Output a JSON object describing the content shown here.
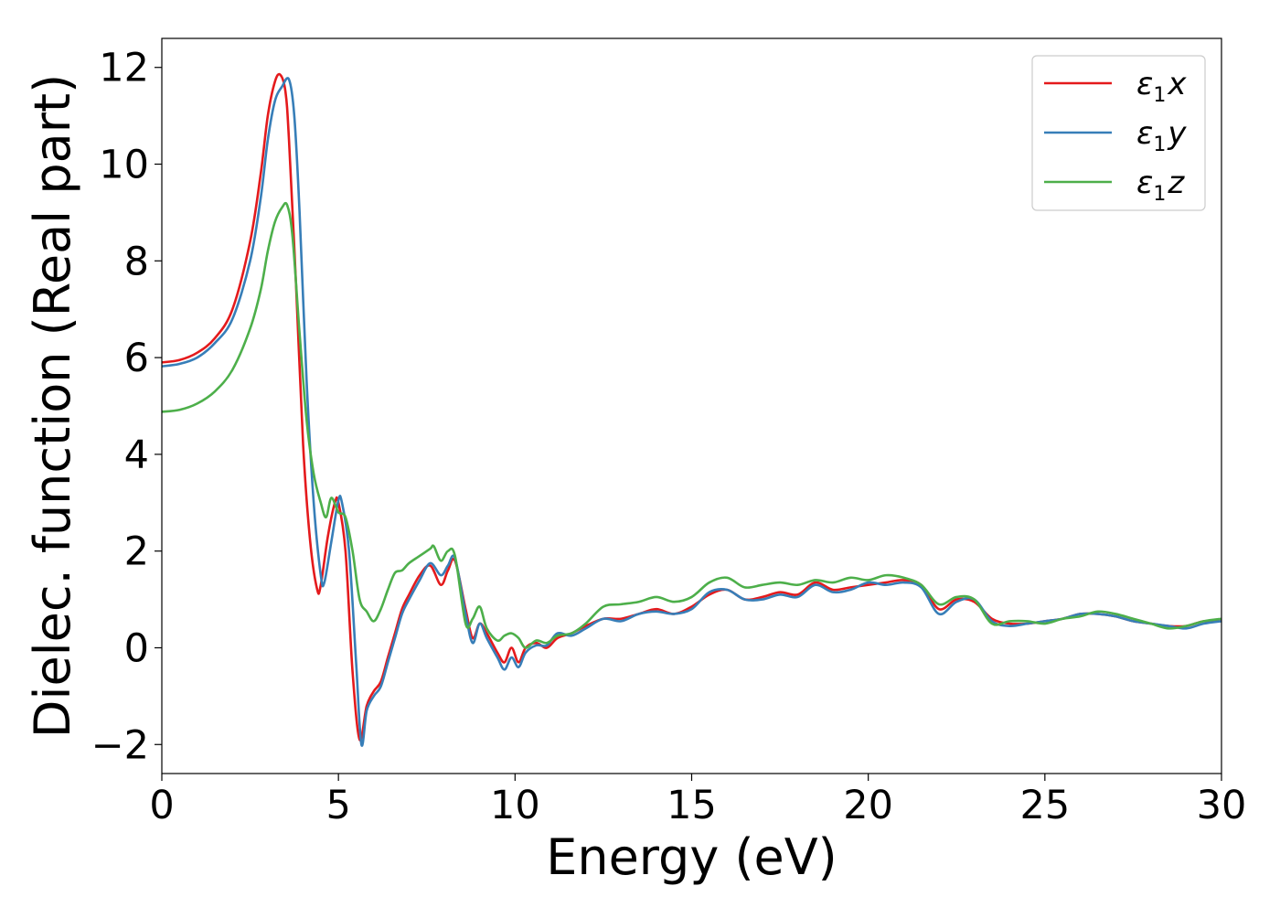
{
  "chart_data": {
    "type": "line",
    "title": "",
    "xlabel": "Energy (eV)",
    "ylabel": "Dielec. function (Real part)",
    "xlim": [
      0,
      30
    ],
    "ylim": [
      -2.6,
      12.6
    ],
    "xticks": [
      0,
      5,
      10,
      15,
      20,
      25,
      30
    ],
    "yticks": [
      -2,
      0,
      2,
      4,
      6,
      8,
      10,
      12
    ],
    "xtick_labels": [
      "0",
      "5",
      "10",
      "15",
      "20",
      "25",
      "30"
    ],
    "ytick_labels": [
      "−2",
      "0",
      "2",
      "4",
      "6",
      "8",
      "10",
      "12"
    ],
    "grid": false,
    "legend_position": "top-right",
    "series": [
      {
        "name": "ε₁x",
        "legend_main": "ε",
        "legend_sub": "1",
        "legend_var": "x",
        "color": "#e41a1c",
        "x": [
          0,
          0.5,
          1,
          1.5,
          2,
          2.5,
          2.8,
          3.0,
          3.2,
          3.35,
          3.5,
          3.6,
          3.8,
          4.0,
          4.2,
          4.4,
          4.5,
          4.7,
          4.9,
          5.0,
          5.2,
          5.4,
          5.6,
          5.8,
          6.0,
          6.2,
          6.4,
          6.6,
          6.8,
          7.0,
          7.3,
          7.6,
          7.9,
          8.1,
          8.3,
          8.6,
          8.8,
          9.0,
          9.2,
          9.5,
          9.7,
          9.9,
          10.1,
          10.3,
          10.6,
          10.9,
          11.2,
          11.6,
          12.0,
          12.5,
          13.0,
          13.5,
          14.0,
          14.5,
          15.0,
          15.5,
          16.0,
          16.5,
          17.0,
          17.5,
          18.0,
          18.5,
          19.0,
          19.5,
          20.0,
          20.5,
          21.0,
          21.5,
          22.0,
          22.5,
          23.0,
          23.5,
          24.0,
          24.5,
          25.0,
          25.5,
          26.0,
          26.5,
          27.0,
          27.5,
          28.0,
          28.5,
          29.0,
          29.5,
          30.0
        ],
        "values": [
          5.9,
          5.95,
          6.1,
          6.4,
          7.0,
          8.4,
          9.8,
          11.0,
          11.7,
          11.85,
          11.5,
          10.5,
          7.5,
          4.2,
          2.2,
          1.2,
          1.3,
          2.3,
          3.0,
          3.0,
          2.0,
          -0.5,
          -1.9,
          -1.2,
          -0.9,
          -0.7,
          -0.2,
          0.3,
          0.8,
          1.1,
          1.5,
          1.7,
          1.3,
          1.6,
          1.8,
          0.8,
          0.2,
          0.5,
          0.3,
          -0.1,
          -0.3,
          0.0,
          -0.3,
          0.0,
          0.1,
          0.0,
          0.2,
          0.3,
          0.45,
          0.6,
          0.6,
          0.7,
          0.8,
          0.7,
          0.85,
          1.1,
          1.2,
          1.0,
          1.05,
          1.15,
          1.1,
          1.35,
          1.2,
          1.25,
          1.3,
          1.35,
          1.4,
          1.3,
          0.8,
          1.0,
          0.95,
          0.6,
          0.5,
          0.5,
          0.55,
          0.6,
          0.7,
          0.7,
          0.65,
          0.55,
          0.5,
          0.45,
          0.45,
          0.55,
          0.55
        ]
      },
      {
        "name": "ε₁y",
        "legend_main": "ε",
        "legend_sub": "1",
        "legend_var": "y",
        "color": "#377eb8",
        "x": [
          0,
          0.5,
          1,
          1.5,
          2,
          2.5,
          2.8,
          3.0,
          3.2,
          3.4,
          3.6,
          3.75,
          3.9,
          4.1,
          4.3,
          4.5,
          4.6,
          4.8,
          5.0,
          5.1,
          5.3,
          5.5,
          5.65,
          5.8,
          6.0,
          6.2,
          6.4,
          6.6,
          6.8,
          7.0,
          7.3,
          7.6,
          7.9,
          8.1,
          8.3,
          8.6,
          8.8,
          9.0,
          9.2,
          9.5,
          9.7,
          9.9,
          10.1,
          10.3,
          10.6,
          10.9,
          11.2,
          11.6,
          12.0,
          12.5,
          13.0,
          13.5,
          14.0,
          14.5,
          15.0,
          15.5,
          16.0,
          16.5,
          17.0,
          17.5,
          18.0,
          18.5,
          19.0,
          19.5,
          20.0,
          20.5,
          21.0,
          21.5,
          22.0,
          22.5,
          23.0,
          23.5,
          24.0,
          24.5,
          25.0,
          25.5,
          26.0,
          26.5,
          27.0,
          27.5,
          28.0,
          28.5,
          29.0,
          29.5,
          30.0
        ],
        "values": [
          5.82,
          5.87,
          6.0,
          6.3,
          6.8,
          8.0,
          9.3,
          10.5,
          11.3,
          11.6,
          11.75,
          11.0,
          9.0,
          5.5,
          3.0,
          1.5,
          1.35,
          2.2,
          3.05,
          3.0,
          2.0,
          -0.3,
          -2.0,
          -1.3,
          -1.0,
          -0.8,
          -0.3,
          0.2,
          0.7,
          1.0,
          1.4,
          1.75,
          1.5,
          1.7,
          1.85,
          0.7,
          0.1,
          0.5,
          0.2,
          -0.2,
          -0.45,
          -0.2,
          -0.4,
          -0.1,
          0.05,
          0.05,
          0.3,
          0.25,
          0.4,
          0.6,
          0.55,
          0.7,
          0.75,
          0.7,
          0.8,
          1.15,
          1.2,
          1.0,
          1.0,
          1.1,
          1.05,
          1.3,
          1.15,
          1.2,
          1.35,
          1.3,
          1.35,
          1.25,
          0.7,
          0.95,
          1.0,
          0.55,
          0.45,
          0.5,
          0.55,
          0.6,
          0.7,
          0.7,
          0.65,
          0.55,
          0.5,
          0.45,
          0.4,
          0.5,
          0.55
        ]
      },
      {
        "name": "ε₁z",
        "legend_main": "ε",
        "legend_sub": "1",
        "legend_var": "z",
        "color": "#4daf4a",
        "x": [
          0,
          0.5,
          1,
          1.5,
          2,
          2.5,
          2.8,
          3.0,
          3.2,
          3.4,
          3.55,
          3.7,
          3.9,
          4.1,
          4.3,
          4.5,
          4.65,
          4.8,
          5.0,
          5.2,
          5.4,
          5.6,
          5.8,
          6.0,
          6.2,
          6.4,
          6.6,
          6.8,
          7.0,
          7.3,
          7.6,
          7.7,
          7.9,
          8.1,
          8.3,
          8.6,
          8.8,
          9.0,
          9.2,
          9.5,
          9.7,
          9.9,
          10.1,
          10.3,
          10.6,
          10.9,
          11.2,
          11.6,
          12.0,
          12.5,
          13.0,
          13.5,
          14.0,
          14.5,
          15.0,
          15.5,
          16.0,
          16.5,
          17.0,
          17.5,
          18.0,
          18.5,
          19.0,
          19.5,
          20.0,
          20.5,
          21.0,
          21.5,
          22.0,
          22.5,
          23.0,
          23.5,
          24.0,
          24.5,
          25.0,
          25.5,
          26.0,
          26.5,
          27.0,
          27.5,
          28.0,
          28.5,
          29.0,
          29.5,
          30.0
        ],
        "values": [
          4.88,
          4.92,
          5.05,
          5.3,
          5.75,
          6.6,
          7.4,
          8.2,
          8.8,
          9.1,
          9.15,
          8.5,
          6.5,
          4.7,
          3.6,
          3.0,
          2.7,
          3.1,
          2.8,
          2.7,
          2.0,
          1.0,
          0.75,
          0.55,
          0.8,
          1.2,
          1.55,
          1.6,
          1.75,
          1.9,
          2.05,
          2.1,
          1.8,
          2.0,
          1.9,
          0.5,
          0.6,
          0.85,
          0.4,
          0.15,
          0.25,
          0.3,
          0.2,
          0.0,
          0.15,
          0.1,
          0.25,
          0.3,
          0.5,
          0.85,
          0.9,
          0.95,
          1.05,
          0.95,
          1.05,
          1.35,
          1.45,
          1.25,
          1.3,
          1.35,
          1.3,
          1.4,
          1.35,
          1.45,
          1.4,
          1.5,
          1.45,
          1.3,
          0.9,
          1.05,
          1.0,
          0.5,
          0.55,
          0.55,
          0.5,
          0.6,
          0.65,
          0.75,
          0.7,
          0.6,
          0.5,
          0.4,
          0.45,
          0.55,
          0.6
        ]
      }
    ]
  }
}
